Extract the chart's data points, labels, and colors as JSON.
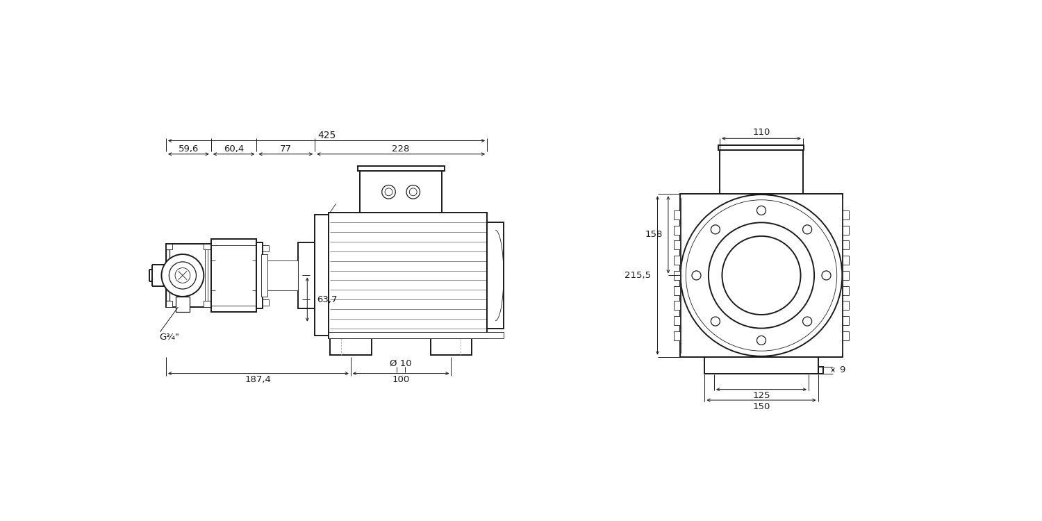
{
  "bg_color": "#ffffff",
  "line_color": "#1a1a1a",
  "lw_thick": 1.4,
  "lw_med": 0.9,
  "lw_thin": 0.6,
  "lw_dim": 0.7,
  "fs_dim": 9.5,
  "figsize": [
    15.0,
    7.5
  ],
  "dpi": 100,
  "dim_425": "425",
  "dim_59_6": "59,6",
  "dim_60_4": "60,4",
  "dim_77": "77",
  "dim_228": "228",
  "dim_187_4": "187,4",
  "dim_100": "100",
  "dim_d10": "Ø 10",
  "dim_63_7": "63,7",
  "dim_158": "158",
  "dim_215_5": "215,5",
  "dim_110": "110",
  "dim_125": "125",
  "dim_150": "150",
  "dim_9": "9",
  "label_g34": "G¾\""
}
